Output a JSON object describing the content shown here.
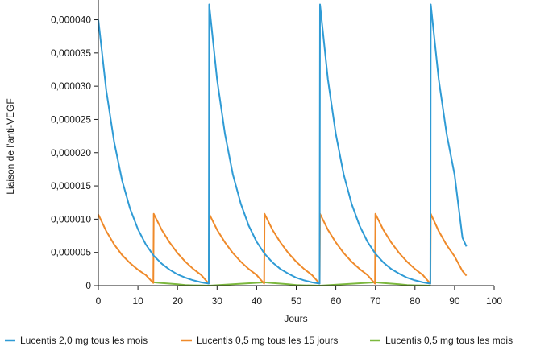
{
  "chart_data": {
    "type": "line",
    "xlabel": "Jours",
    "ylabel": "Liaison de l’anti-VEGF",
    "xlim": [
      0,
      100
    ],
    "ylim": [
      0,
      4.2e-05
    ],
    "xticks": [
      0,
      10,
      20,
      30,
      40,
      50,
      60,
      70,
      80,
      90,
      100
    ],
    "xtick_labels": [
      "0",
      "10",
      "20",
      "30",
      "40",
      "50",
      "60",
      "70",
      "80",
      "90",
      "100"
    ],
    "yticks": [
      0,
      5e-06,
      1e-05,
      1.5e-05,
      2e-05,
      2.5e-05,
      3e-05,
      3.5e-05,
      4e-05
    ],
    "ytick_labels": [
      "0",
      "0,000005",
      "0,000010",
      "0,000015",
      "0,000020",
      "0,000025",
      "0,000030",
      "0,000035",
      "0,000040"
    ],
    "grid": false,
    "legend_position": "bottom",
    "series": [
      {
        "name": "Lucentis 2,0 mg tous les mois",
        "color": "#2f9bd5",
        "x": [
          0,
          2,
          4,
          6,
          8,
          10,
          12,
          14,
          16,
          18,
          20,
          22,
          24,
          26,
          27.9,
          28,
          30,
          32,
          34,
          36,
          38,
          40,
          42,
          44,
          46,
          48,
          50,
          52,
          54,
          55.9,
          56,
          58,
          60,
          62,
          64,
          66,
          68,
          70,
          72,
          74,
          76,
          78,
          80,
          82,
          83.9,
          84,
          86,
          88,
          90,
          92,
          93
        ],
        "y": [
          4e-05,
          2.94e-05,
          2.16e-05,
          1.58e-05,
          1.16e-05,
          8.5e-06,
          6.2e-06,
          4.5e-06,
          3.3e-06,
          2.4e-06,
          1.7e-06,
          1.2e-06,
          8e-07,
          5e-07,
          3e-07,
          4.23e-05,
          3.1e-05,
          2.28e-05,
          1.67e-05,
          1.23e-05,
          9e-06,
          6.6e-06,
          4.8e-06,
          3.5e-06,
          2.5e-06,
          1.8e-06,
          1.2e-06,
          8e-07,
          5e-07,
          3e-07,
          4.23e-05,
          3.1e-05,
          2.28e-05,
          1.67e-05,
          1.23e-05,
          9e-06,
          6.6e-06,
          4.8e-06,
          3.5e-06,
          2.5e-06,
          1.8e-06,
          1.2e-06,
          8e-07,
          5e-07,
          3e-07,
          4.23e-05,
          3.1e-05,
          2.28e-05,
          1.67e-05,
          7.2e-06,
          5.9e-06
        ]
      },
      {
        "name": "Lucentis 0,5 mg tous les 15 jours",
        "color": "#ef8a2a",
        "x": [
          0,
          2,
          4,
          6,
          8,
          10,
          12,
          13.9,
          14,
          16,
          18,
          20,
          22,
          24,
          26,
          27.9,
          28,
          30,
          32,
          34,
          36,
          38,
          40,
          41.9,
          42,
          44,
          46,
          48,
          50,
          52,
          54,
          55.9,
          56,
          58,
          60,
          62,
          64,
          66,
          68,
          69.9,
          70,
          72,
          74,
          76,
          78,
          80,
          82,
          83.9,
          84,
          86,
          88,
          90,
          92,
          93
        ],
        "y": [
          1.07e-05,
          8.2e-06,
          6.2e-06,
          4.6e-06,
          3.4e-06,
          2.4e-06,
          1.6e-06,
          4e-07,
          1.08e-05,
          8.4e-06,
          6.5e-06,
          4.9e-06,
          3.6e-06,
          2.5e-06,
          1.6e-06,
          3e-07,
          1.08e-05,
          8.4e-06,
          6.5e-06,
          4.9e-06,
          3.6e-06,
          2.5e-06,
          1.6e-06,
          3e-07,
          1.08e-05,
          8.4e-06,
          6.5e-06,
          4.9e-06,
          3.6e-06,
          2.5e-06,
          1.6e-06,
          3e-07,
          1.08e-05,
          8.4e-06,
          6.5e-06,
          4.9e-06,
          3.6e-06,
          2.5e-06,
          1.6e-06,
          3e-07,
          1.08e-05,
          8.4e-06,
          6.5e-06,
          4.9e-06,
          3.6e-06,
          2.5e-06,
          1.6e-06,
          3e-07,
          1.08e-05,
          8.2e-06,
          6.1e-06,
          4.4e-06,
          2.2e-06,
          1.5e-06
        ]
      },
      {
        "name": "Lucentis 0,5 mg tous les mois",
        "color": "#7cb83e",
        "x": [
          14,
          16,
          18,
          20,
          22,
          24,
          26,
          28,
          42,
          44,
          46,
          48,
          50,
          52,
          54,
          56,
          70,
          72,
          74,
          76,
          78,
          80,
          82,
          84
        ],
        "y": [
          5e-07,
          4e-07,
          3e-07,
          2e-07,
          1e-07,
          5e-08,
          2e-08,
          0,
          5e-07,
          4e-07,
          3e-07,
          2e-07,
          1e-07,
          5e-08,
          2e-08,
          0,
          5e-07,
          4e-07,
          3e-07,
          2e-07,
          1e-07,
          5e-08,
          2e-08,
          0
        ]
      }
    ]
  }
}
